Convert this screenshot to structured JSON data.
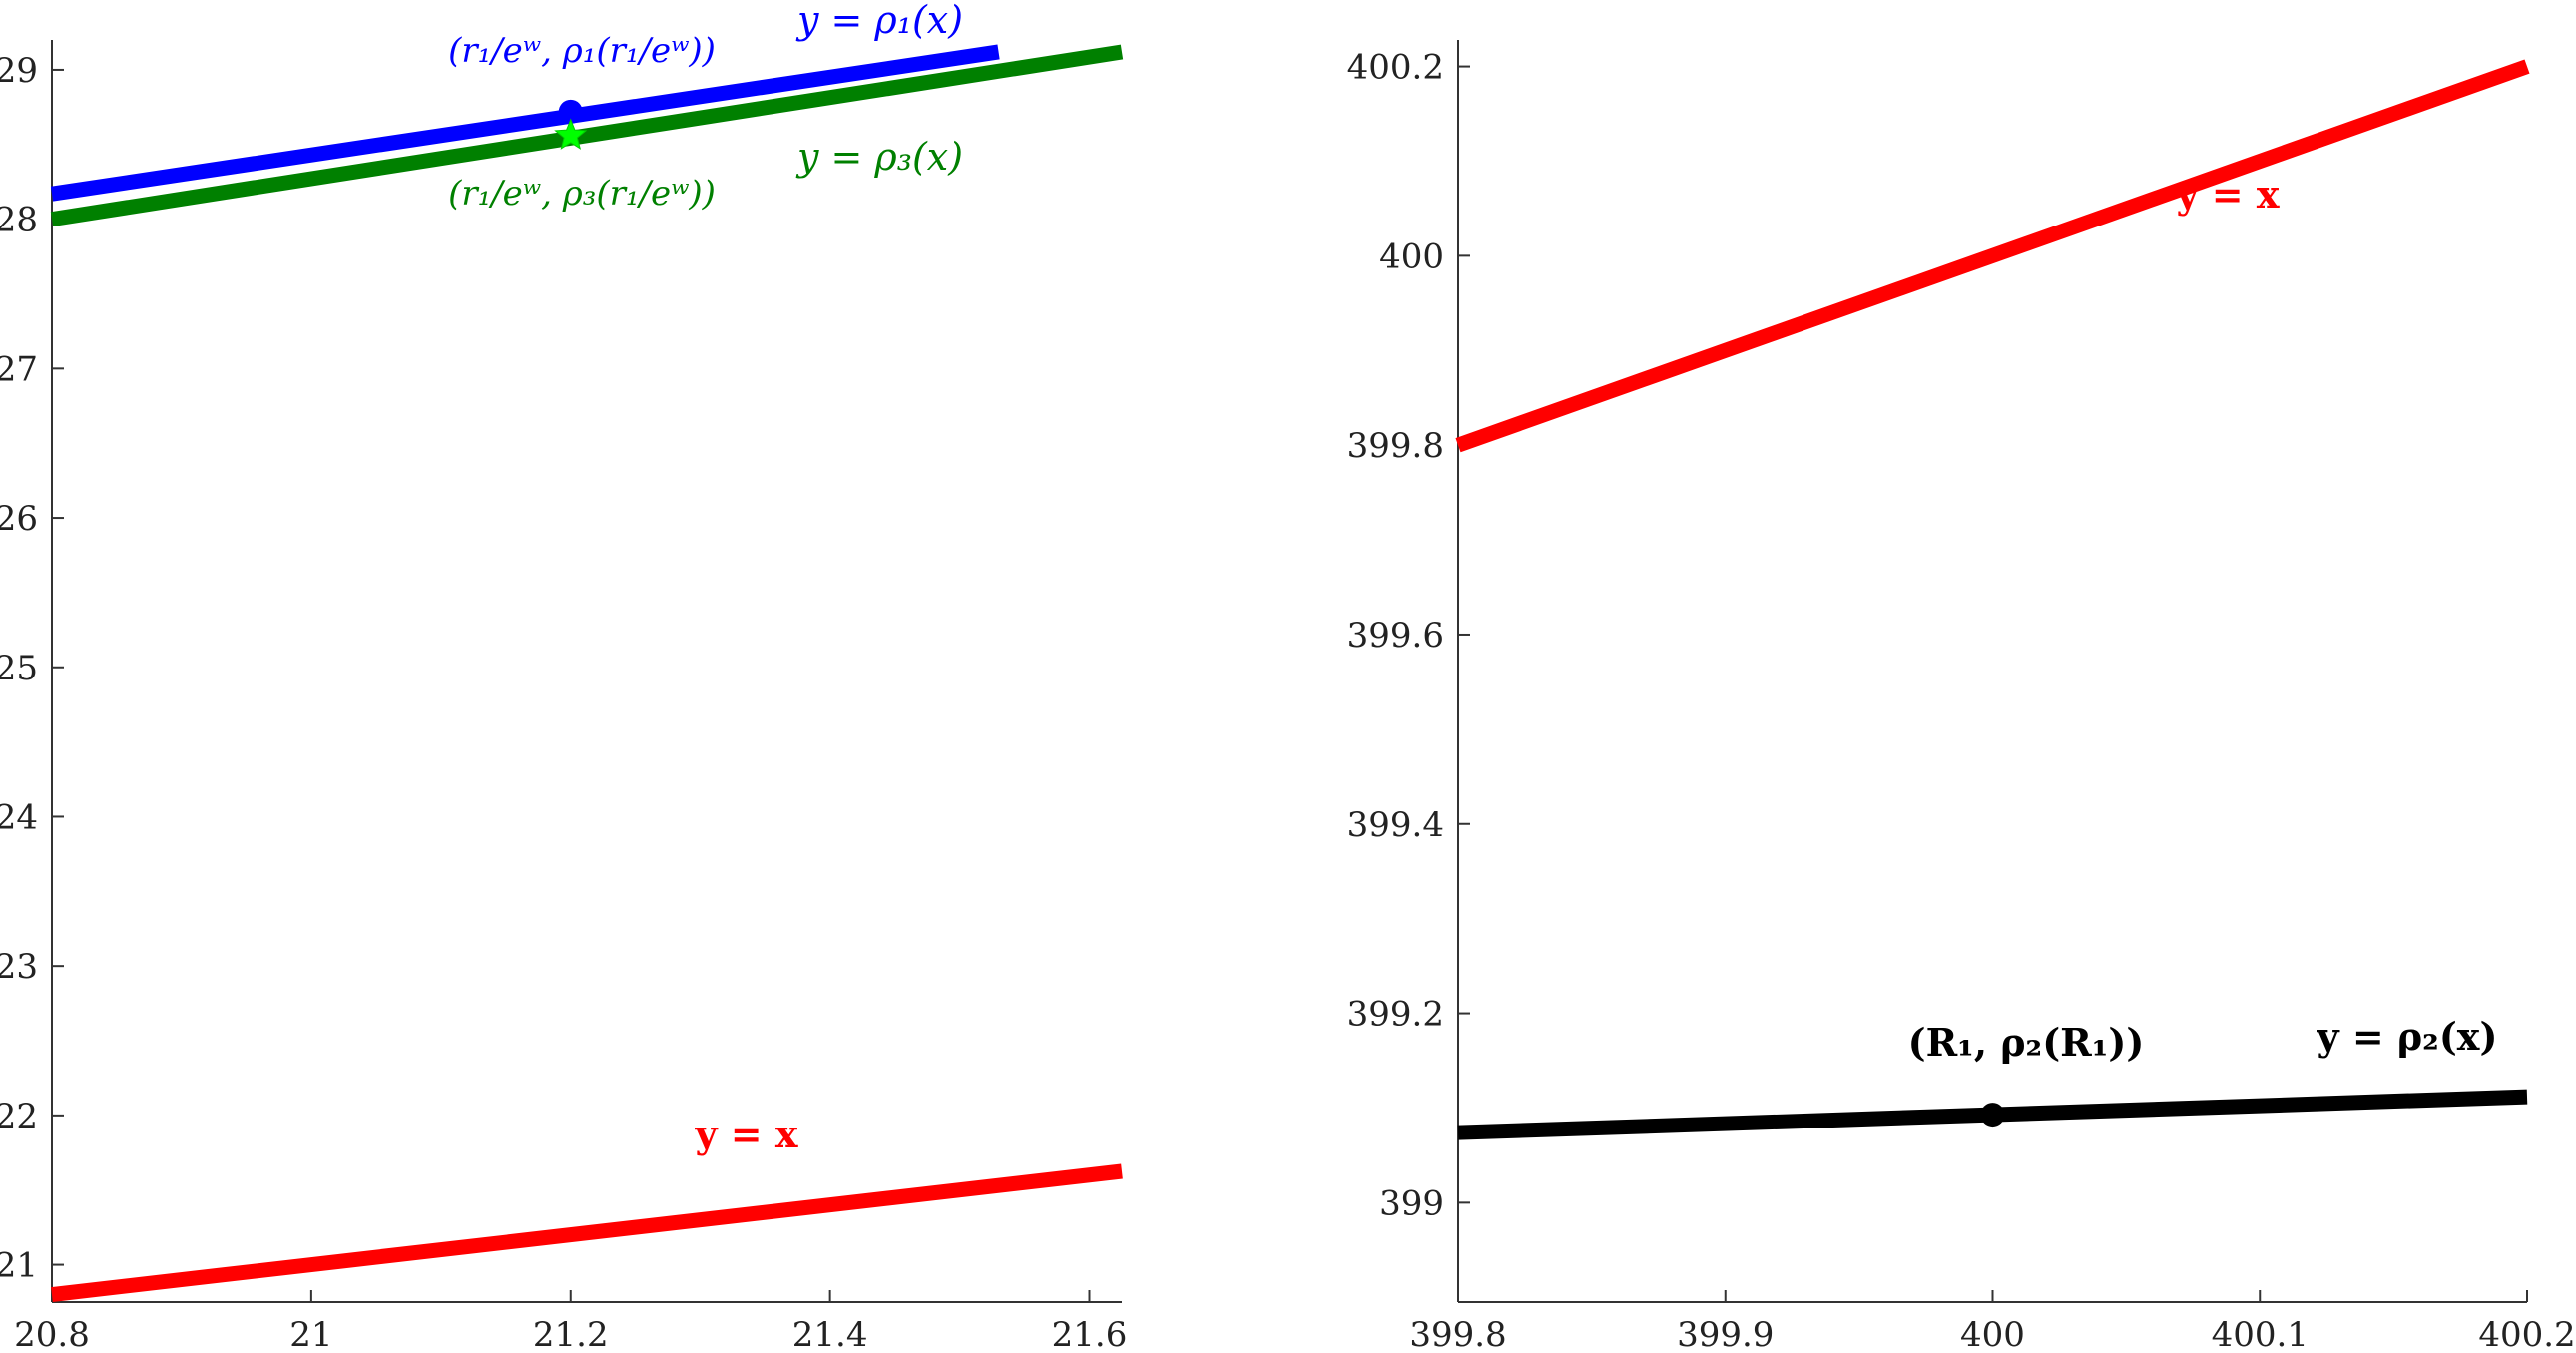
{
  "chart_data": [
    {
      "type": "line",
      "xlim": [
        20.8,
        21.625
      ],
      "ylim": [
        20.75,
        29.2
      ],
      "xticks": [
        "20.8",
        "21",
        "21.2",
        "21.4",
        "21.6"
      ],
      "yticks": [
        "21",
        "22",
        "23",
        "24",
        "25",
        "26",
        "27",
        "28",
        "29"
      ],
      "grid": false,
      "series": [
        {
          "name": "y = ρ₁(x)",
          "color": "#0000ff",
          "points": [
            [
              20.8,
              28.17
            ],
            [
              21.53,
              29.12
            ]
          ]
        },
        {
          "name": "y = ρ₃(x)",
          "color": "#008000",
          "points": [
            [
              20.8,
              28.0
            ],
            [
              21.625,
              29.12
            ]
          ]
        },
        {
          "name": "y = x",
          "color": "#ff0000",
          "points": [
            [
              20.8,
              20.8
            ],
            [
              21.625,
              21.625
            ]
          ]
        }
      ],
      "markers": [
        {
          "shape": "circle",
          "color": "#0000ff",
          "x": 21.2,
          "y": 28.72
        },
        {
          "shape": "star",
          "color": "#00ff00",
          "x": 21.2,
          "y": 28.56
        }
      ],
      "annotations": [
        {
          "text": "y = ρ₁(x)",
          "color": "#0000ff"
        },
        {
          "text": "(r₁/eʷ, ρ₁(r₁/eʷ))",
          "color": "#0000ff"
        },
        {
          "text": "(r₁/eʷ, ρ₃(r₁/eʷ))",
          "color": "#008000"
        },
        {
          "text": "y = ρ₃(x)",
          "color": "#008000"
        },
        {
          "text": "y = x",
          "color": "#ff0000"
        }
      ]
    },
    {
      "type": "line",
      "xlim": [
        399.8,
        400.2
      ],
      "ylim": [
        398.895,
        400.228
      ],
      "xticks": [
        "399.8",
        "399.9",
        "400",
        "400.1",
        "400.2"
      ],
      "yticks": [
        "399",
        "399.2",
        "399.4",
        "399.6",
        "399.8",
        "400",
        "400.2"
      ],
      "grid": false,
      "series": [
        {
          "name": "y = x",
          "color": "#ff0000",
          "points": [
            [
              399.8,
              399.8
            ],
            [
              400.2,
              400.2
            ]
          ]
        },
        {
          "name": "y = ρ₂(x)",
          "color": "#000000",
          "points": [
            [
              399.8,
              399.074
            ],
            [
              400.2,
              399.112
            ]
          ]
        }
      ],
      "markers": [
        {
          "shape": "circle",
          "color": "#000000",
          "x": 400.0,
          "y": 399.093
        }
      ],
      "annotations": [
        {
          "text": "y = x",
          "color": "#ff0000"
        },
        {
          "text": "(R₁, ρ₂(R₁))",
          "color": "#000000"
        },
        {
          "text": "y = ρ₂(x)",
          "color": "#000000"
        }
      ]
    }
  ]
}
